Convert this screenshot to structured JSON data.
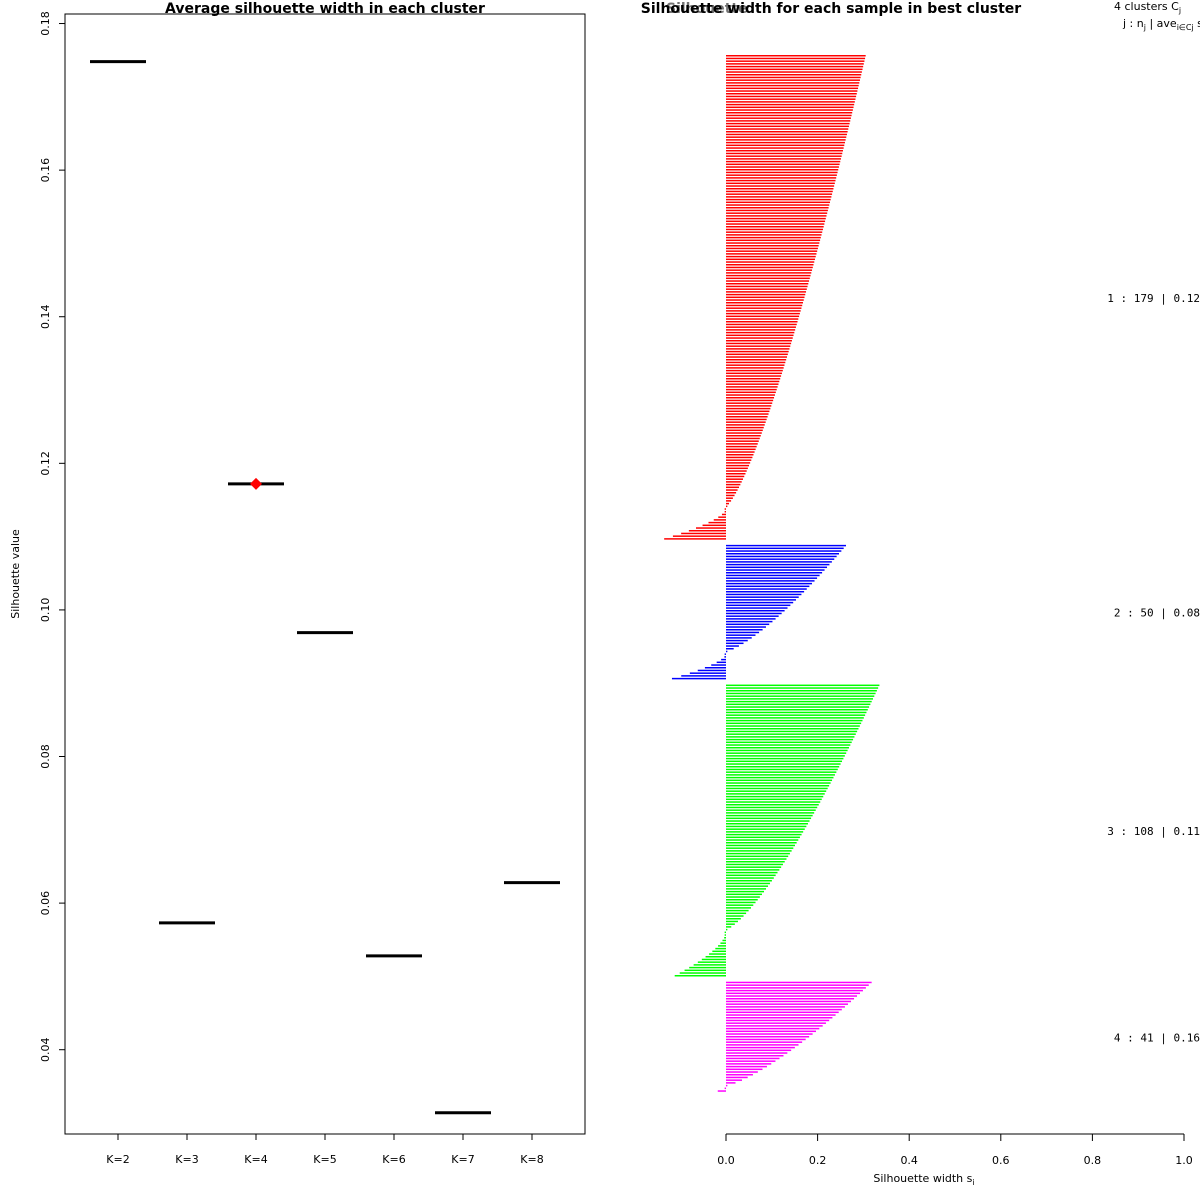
{
  "chart_data": [
    {
      "type": "scatter",
      "title": "Average silhouette width in each cluster",
      "xlabel": "",
      "ylabel": "Silhouette value",
      "categories": [
        "K=2",
        "K=3",
        "K=4",
        "K=5",
        "K=6",
        "K=7",
        "K=8"
      ],
      "values": [
        0.1748,
        0.0573,
        0.1172,
        0.0969,
        0.0528,
        0.0314,
        0.0628
      ],
      "best_k": "K=4",
      "marker_color": "#ff0000",
      "ylim": [
        0.0285,
        0.1813
      ],
      "yticks": [
        0.04,
        0.06,
        0.08,
        0.1,
        0.12,
        0.14,
        0.16,
        0.18
      ],
      "ytick_labels": [
        "0.04",
        "0.06",
        "0.08",
        "0.10",
        "0.12",
        "0.14",
        "0.16",
        "0.18"
      ]
    },
    {
      "type": "bar",
      "orientation": "horizontal",
      "title": "Silhouette width for each sample in best cluster",
      "title_overlap": "Silhouette",
      "xlabel": "Silhouette width s",
      "xlabel_subscript": "i",
      "xlim": [
        -0.13,
        1.0
      ],
      "xticks": [
        0.0,
        0.2,
        0.4,
        0.6,
        0.8,
        1.0
      ],
      "xtick_labels": [
        "0.0",
        "0.2",
        "0.4",
        "0.6",
        "0.8",
        "1.0"
      ],
      "legend_header": "4  clusters  C",
      "legend_header_sub": "j",
      "legend_subheader": "j :  n",
      "legend_subheader_sub": "j",
      "legend_subheader_rest": " | ave",
      "legend_subheader_sub2": "i∈Cj",
      "legend_subheader_end": "  s",
      "clusters": [
        {
          "id": 1,
          "n": 179,
          "label": "1 :  179  |  0.12",
          "color": "#ff0000",
          "max": 0.305,
          "min": -0.135,
          "neg": 12
        },
        {
          "id": 2,
          "n": 50,
          "label": "2 :  50  |  0.08",
          "color": "#0000ff",
          "max": 0.262,
          "min": -0.118,
          "neg": 10
        },
        {
          "id": 3,
          "n": 108,
          "label": "3 :  108  |  0.11",
          "color": "#00ff00",
          "max": 0.335,
          "min": -0.112,
          "neg": 17
        },
        {
          "id": 4,
          "n": 41,
          "label": "4 :  41  |  0.16",
          "color": "#ff00ff",
          "max": 0.318,
          "min": -0.018,
          "neg": 2
        }
      ]
    }
  ]
}
